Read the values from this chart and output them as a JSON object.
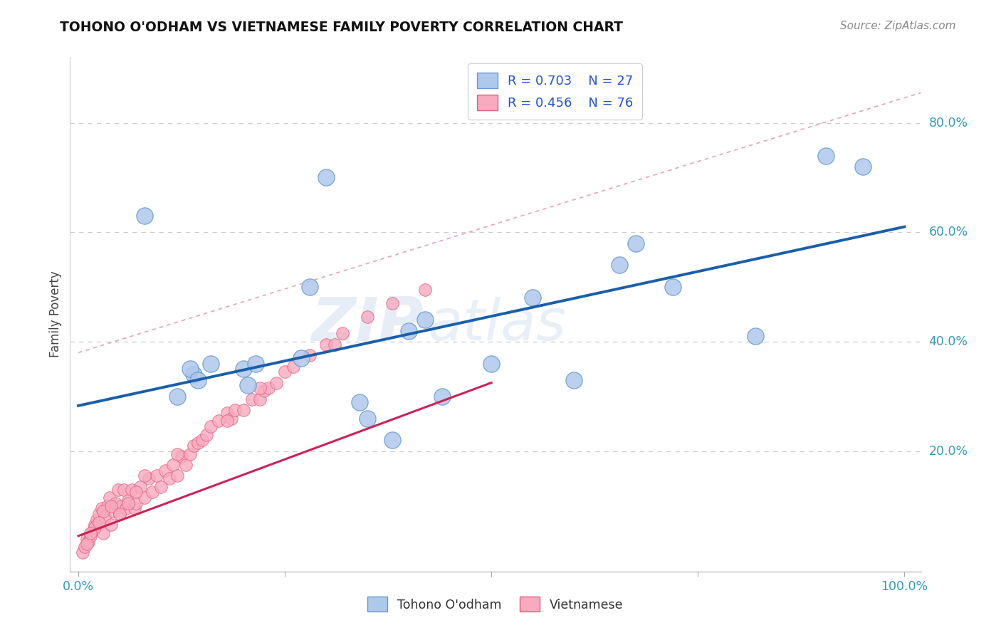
{
  "title": "TOHONO O'ODHAM VS VIETNAMESE FAMILY POVERTY CORRELATION CHART",
  "source": "Source: ZipAtlas.com",
  "ylabel": "Family Poverty",
  "ytick_values": [
    0.2,
    0.4,
    0.6,
    0.8
  ],
  "xlim": [
    -0.01,
    1.02
  ],
  "ylim": [
    -0.02,
    0.92
  ],
  "legend_r1": "R = 0.703",
  "legend_n1": "N = 27",
  "legend_r2": "R = 0.456",
  "legend_n2": "N = 76",
  "tohono_color": "#aec8ec",
  "tohono_edge": "#6699cc",
  "vietnamese_color": "#f8aabf",
  "vietnamese_edge": "#e06080",
  "trendline_blue": "#1a5faa",
  "trendline_pink": "#cc2255",
  "trendline_dashed": "#e0aabb",
  "watermark_text": "ZIP",
  "watermark_text2": "atlas",
  "tohono_label": "Tohono O'odham",
  "vietnamese_label": "Vietnamese",
  "tohono_x": [
    0.08,
    0.3,
    0.12,
    0.14,
    0.16,
    0.135,
    0.2,
    0.205,
    0.215,
    0.27,
    0.28,
    0.34,
    0.4,
    0.6,
    0.655,
    0.675,
    0.72,
    0.82,
    0.905,
    0.95,
    0.55,
    0.5,
    0.42,
    0.35,
    0.38,
    0.44,
    0.145
  ],
  "tohono_y": [
    0.63,
    0.7,
    0.3,
    0.34,
    0.36,
    0.35,
    0.35,
    0.32,
    0.36,
    0.37,
    0.5,
    0.29,
    0.42,
    0.33,
    0.54,
    0.58,
    0.5,
    0.41,
    0.74,
    0.72,
    0.48,
    0.36,
    0.44,
    0.26,
    0.22,
    0.3,
    0.33
  ],
  "viet_x": [
    0.005,
    0.008,
    0.01,
    0.012,
    0.015,
    0.018,
    0.02,
    0.022,
    0.025,
    0.028,
    0.03,
    0.032,
    0.035,
    0.038,
    0.04,
    0.042,
    0.045,
    0.048,
    0.05,
    0.052,
    0.055,
    0.058,
    0.06,
    0.065,
    0.068,
    0.07,
    0.075,
    0.08,
    0.085,
    0.09,
    0.095,
    0.1,
    0.105,
    0.11,
    0.115,
    0.12,
    0.125,
    0.13,
    0.135,
    0.14,
    0.145,
    0.15,
    0.155,
    0.16,
    0.17,
    0.18,
    0.185,
    0.19,
    0.2,
    0.21,
    0.22,
    0.225,
    0.23,
    0.24,
    0.25,
    0.26,
    0.28,
    0.3,
    0.31,
    0.32,
    0.02,
    0.03,
    0.04,
    0.05,
    0.06,
    0.07,
    0.08,
    0.12,
    0.18,
    0.22,
    0.35,
    0.38,
    0.42,
    0.01,
    0.015,
    0.025
  ],
  "viet_y": [
    0.015,
    0.025,
    0.04,
    0.035,
    0.045,
    0.055,
    0.065,
    0.075,
    0.085,
    0.095,
    0.05,
    0.08,
    0.1,
    0.115,
    0.065,
    0.09,
    0.105,
    0.13,
    0.085,
    0.1,
    0.13,
    0.095,
    0.11,
    0.13,
    0.095,
    0.105,
    0.135,
    0.115,
    0.15,
    0.125,
    0.155,
    0.135,
    0.165,
    0.15,
    0.175,
    0.155,
    0.19,
    0.175,
    0.195,
    0.21,
    0.215,
    0.22,
    0.23,
    0.245,
    0.255,
    0.27,
    0.26,
    0.275,
    0.275,
    0.295,
    0.295,
    0.31,
    0.315,
    0.325,
    0.345,
    0.355,
    0.375,
    0.395,
    0.395,
    0.415,
    0.06,
    0.09,
    0.1,
    0.085,
    0.105,
    0.125,
    0.155,
    0.195,
    0.255,
    0.315,
    0.445,
    0.47,
    0.495,
    0.03,
    0.05,
    0.07
  ],
  "blue_line_x": [
    0.0,
    1.0
  ],
  "blue_line_y": [
    0.283,
    0.61
  ],
  "pink_line_x": [
    0.0,
    0.5
  ],
  "pink_line_y": [
    0.045,
    0.325
  ],
  "dashed_line_x": [
    0.0,
    1.02
  ],
  "dashed_line_y": [
    0.38,
    0.855
  ]
}
